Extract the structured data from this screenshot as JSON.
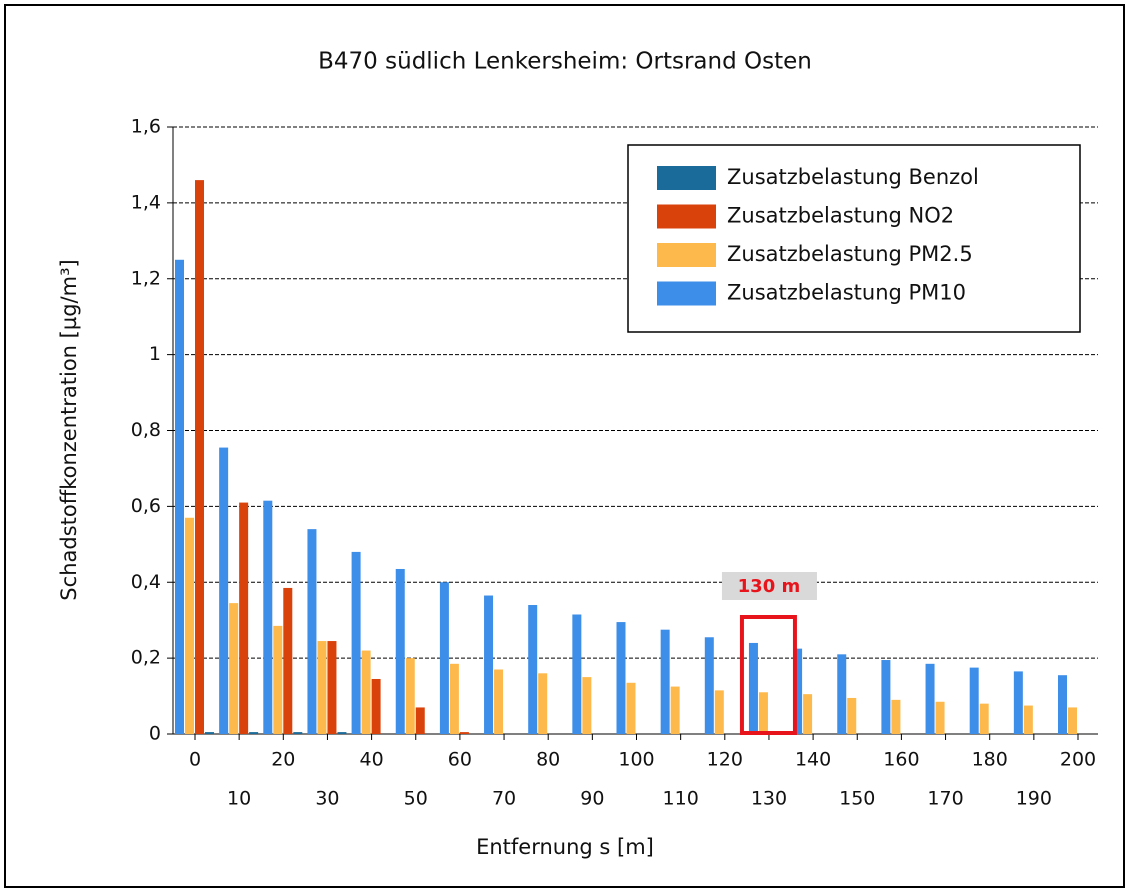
{
  "chart_data": {
    "type": "bar",
    "title": "B470 südlich Lenkersheim: Ortsrand Osten",
    "x_label": "Entfernung s [m]",
    "y_label": "Schadstoffkonzentration [µg/m³]",
    "categories": [
      "0",
      "10",
      "20",
      "30",
      "40",
      "50",
      "60",
      "70",
      "80",
      "90",
      "100",
      "110",
      "120",
      "130",
      "140",
      "150",
      "160",
      "170",
      "180",
      "190",
      "200"
    ],
    "series": [
      {
        "name": "Zusatzbelastung Benzol",
        "color": "#1a6b9a",
        "values": [
          0.005,
          0.005,
          0.005,
          0.005,
          0,
          0,
          0,
          0,
          0,
          0,
          0,
          0,
          0,
          0,
          0,
          0,
          0,
          0,
          0,
          0,
          0
        ]
      },
      {
        "name": "Zusatzbelastung NO2",
        "color": "#d9420b",
        "values": [
          1.46,
          0.61,
          0.385,
          0.245,
          0.145,
          0.07,
          0.005,
          0,
          0,
          0,
          0,
          0,
          0,
          0,
          0,
          0,
          0,
          0,
          0,
          0,
          0
        ]
      },
      {
        "name": "Zusatzbelastung PM2.5",
        "color": "#fdb94b",
        "values": [
          0.57,
          0.345,
          0.285,
          0.245,
          0.22,
          0.2,
          0.185,
          0.17,
          0.16,
          0.15,
          0.135,
          0.125,
          0.115,
          0.11,
          0.105,
          0.095,
          0.09,
          0.085,
          0.08,
          0.075,
          0.07
        ]
      },
      {
        "name": "Zusatzbelastung PM10",
        "color": "#3d8ee8",
        "values": [
          1.25,
          0.755,
          0.615,
          0.54,
          0.48,
          0.435,
          0.4,
          0.365,
          0.34,
          0.315,
          0.295,
          0.275,
          0.255,
          0.24,
          0.225,
          0.21,
          0.195,
          0.185,
          0.175,
          0.165,
          0.155
        ]
      }
    ],
    "ylim": [
      0,
      1.6
    ],
    "yticks": [
      0,
      {
        "value": 0.2,
        "label": "0,2"
      },
      {
        "value": 0.4,
        "label": "0,4"
      },
      {
        "value": 0.6,
        "label": "0,6"
      },
      {
        "value": 0.8,
        "label": "0,8"
      },
      1,
      {
        "value": 1.2,
        "label": "1,2"
      },
      {
        "value": 1.4,
        "label": "1,4"
      },
      {
        "value": 1.6,
        "label": "1,6"
      }
    ],
    "grid": true,
    "legend": "upper right",
    "annotation": {
      "text": "130 m",
      "category": "130"
    }
  }
}
